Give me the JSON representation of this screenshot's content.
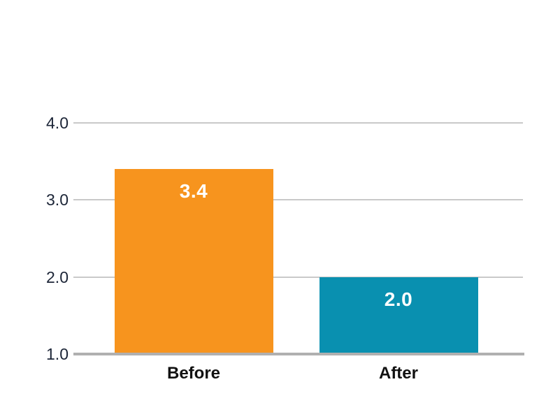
{
  "chart_data": {
    "type": "bar",
    "title": "",
    "xlabel": "",
    "ylabel": "",
    "categories": [
      "Before",
      "After"
    ],
    "values": [
      3.4,
      2.0
    ],
    "value_labels": [
      "3.4",
      "2.0"
    ],
    "bar_colors": [
      "#F7941E",
      "#0990B0"
    ],
    "ylim": [
      1.0,
      4.0
    ],
    "yticks": [
      {
        "value": 1.0,
        "label": "1.0"
      },
      {
        "value": 2.0,
        "label": "2.0"
      },
      {
        "value": 3.0,
        "label": "3.0"
      },
      {
        "value": 4.0,
        "label": "4.0"
      }
    ],
    "grid": true,
    "legend": false,
    "colors": {
      "background": "#FFFFFF",
      "gridline": "#C9C9C9",
      "baseline": "#B0B0B0",
      "tick_text": "#1C2537",
      "category_text": "#111111",
      "bar_value_text": "#FFFFFF"
    }
  }
}
